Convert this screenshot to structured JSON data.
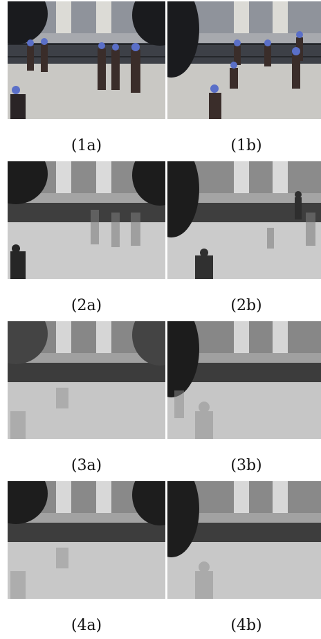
{
  "figure": {
    "panels": [
      {
        "caption": "(1a)",
        "kind": "color",
        "people": "full"
      },
      {
        "caption": "(1b)",
        "kind": "color",
        "people": "full"
      },
      {
        "caption": "(2a)",
        "kind": "gray",
        "people": "ghost"
      },
      {
        "caption": "(2b)",
        "kind": "gray",
        "people": "ghost"
      },
      {
        "caption": "(3a)",
        "kind": "gray",
        "people": "faint"
      },
      {
        "caption": "(3b)",
        "kind": "gray",
        "people": "faint"
      },
      {
        "caption": "(4a)",
        "kind": "gray",
        "people": "faint"
      },
      {
        "caption": "(4b)",
        "kind": "gray",
        "people": "faint"
      }
    ]
  }
}
